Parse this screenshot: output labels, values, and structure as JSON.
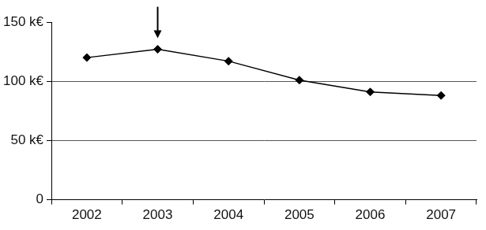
{
  "chart_data": {
    "type": "line",
    "categories": [
      "2002",
      "2003",
      "2004",
      "2005",
      "2006",
      "2007"
    ],
    "values": [
      120,
      127,
      117,
      101,
      91,
      88
    ],
    "color": "#000000",
    "marker": "diamond",
    "ylim": [
      0,
      150
    ],
    "yticks": [
      0,
      {
        "value": 50,
        "label": "50 k€"
      },
      {
        "value": 100,
        "label": "100 k€"
      },
      {
        "value": 150,
        "label": "150 k€"
      }
    ],
    "grid": true
  }
}
